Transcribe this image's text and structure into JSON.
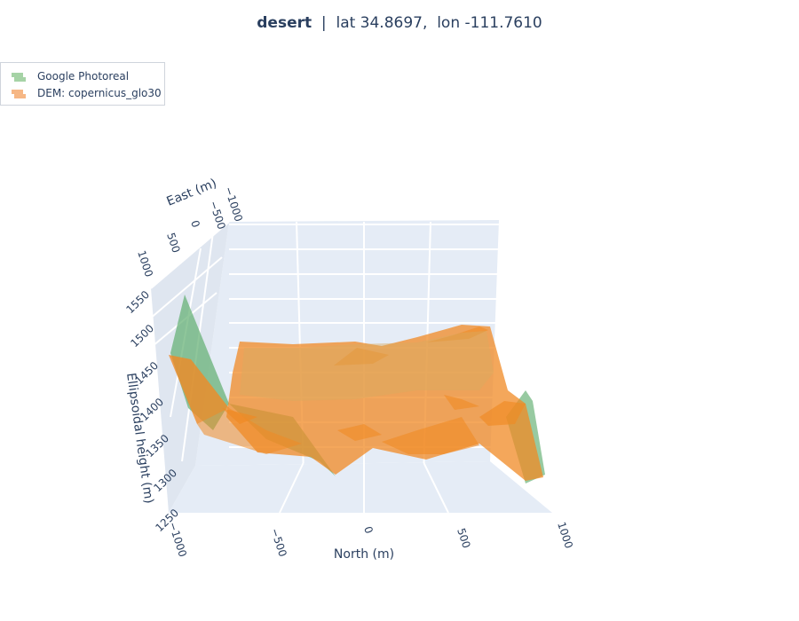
{
  "title": {
    "location": "desert",
    "separator": "|",
    "coords": "lat 34.8697,  lon -111.7610"
  },
  "legend": [
    {
      "label": "Google Photoreal",
      "color": "#7fbf7f"
    },
    {
      "label": "DEM: copernicus_glo30",
      "color": "#f4a460"
    }
  ],
  "chart_data": {
    "type": "surface3d",
    "title": "desert  |  lat 34.8697,  lon -111.7610",
    "xlabel": "North (m)",
    "ylabel": "East (m)",
    "zlabel": "Ellipsoidal height (m)",
    "x_ticks": [
      "−1000",
      "−500",
      "0",
      "500",
      "1000"
    ],
    "y_ticks": [
      "−1000",
      "−500",
      "0",
      "500",
      "1000"
    ],
    "z_ticks": [
      "1250",
      "1300",
      "1350",
      "1400",
      "1450",
      "1500",
      "1550"
    ],
    "xlim": [
      -1000,
      1000
    ],
    "ylim": [
      -1000,
      1000
    ],
    "zlim": [
      1250,
      1560
    ],
    "series": [
      {
        "name": "Google Photoreal",
        "color": "#5fae6f"
      },
      {
        "name": "DEM: copernicus_glo30",
        "color": "#f08a24"
      }
    ],
    "background": "#e5ecf6"
  }
}
